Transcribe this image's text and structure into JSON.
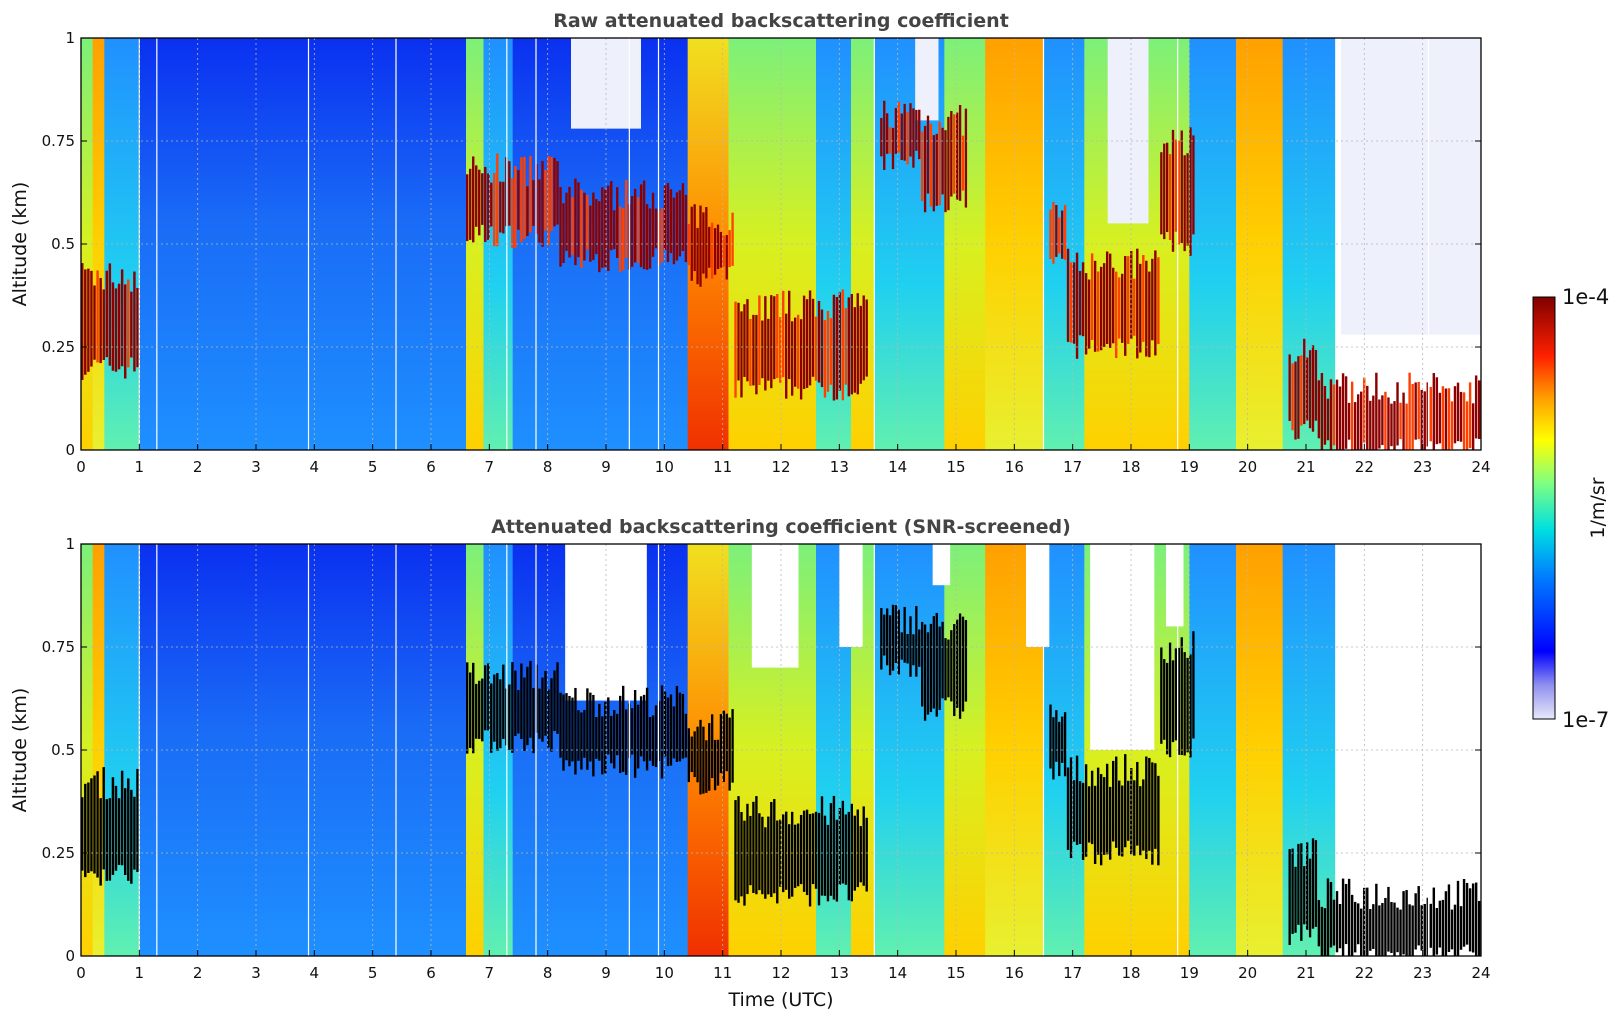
{
  "chart_data": [
    {
      "type": "heatmap",
      "title": "Raw attenuated backscattering coefficient",
      "xlabel": "",
      "ylabel": "Altitude (km)",
      "xlim": [
        0,
        24
      ],
      "ylim": [
        0,
        1
      ],
      "x_ticks": [
        "0",
        "1",
        "2",
        "3",
        "4",
        "5",
        "6",
        "7",
        "8",
        "9",
        "10",
        "11",
        "12",
        "13",
        "14",
        "15",
        "16",
        "17",
        "18",
        "19",
        "20",
        "21",
        "22",
        "23",
        "24"
      ],
      "y_ticks": [
        "0",
        "0.25",
        "0.5",
        "0.75",
        "1"
      ],
      "grid": true,
      "screened": false,
      "time_segments_utc": [
        {
          "start": 0.0,
          "end": 1.0,
          "layer_bottom_km": 0.17,
          "layer_top_km": 0.45,
          "background": "green-yellow",
          "layer": "dark red"
        },
        {
          "start": 1.0,
          "end": 6.6,
          "background": "blue, increasing to light blue near the surface"
        },
        {
          "start": 6.6,
          "end": 10.4,
          "layer_bottom_km": 0.45,
          "layer_top_km": 0.7,
          "layer": "dark red aerosol layer"
        },
        {
          "start": 10.4,
          "end": 13.6,
          "layer_bottom_km": 0.15,
          "layer_top_km": 0.6,
          "background": "red-orange-yellow"
        },
        {
          "start": 13.6,
          "end": 15.2,
          "layer_bottom_km": 0.6,
          "layer_top_km": 0.85,
          "background": "cyan-blue"
        },
        {
          "start": 15.2,
          "end": 16.6,
          "background": "yellow-orange column"
        },
        {
          "start": 16.6,
          "end": 19.2,
          "layer_bottom_km": 0.2,
          "layer_top_km": 0.8,
          "background": "green-yellow"
        },
        {
          "start": 19.2,
          "end": 20.6,
          "background": "cyan-green"
        },
        {
          "start": 20.6,
          "end": 24.0,
          "layer_bottom_km": 0.0,
          "layer_top_km": 0.25,
          "layer": "dark red near-surface layer",
          "above": "white/light noise"
        }
      ]
    },
    {
      "type": "heatmap",
      "title": "Attenuated backscattering coefficient (SNR-screened)",
      "xlabel": "Time (UTC)",
      "ylabel": "Altitude (km)",
      "xlim": [
        0,
        24
      ],
      "ylim": [
        0,
        1
      ],
      "x_ticks": [
        "0",
        "1",
        "2",
        "3",
        "4",
        "5",
        "6",
        "7",
        "8",
        "9",
        "10",
        "11",
        "12",
        "13",
        "14",
        "15",
        "16",
        "17",
        "18",
        "19",
        "20",
        "21",
        "22",
        "23",
        "24"
      ],
      "y_ticks": [
        "0",
        "0.25",
        "0.5",
        "0.75",
        "1"
      ],
      "grid": true,
      "screened": true,
      "note": "Same field as above; strongest values saturated to black, low-SNR regions removed (white)."
    }
  ],
  "colorbar": {
    "label": "1/m/sr",
    "min_label": "1e-7",
    "max_label": "1e-4",
    "colormap": "jet"
  }
}
